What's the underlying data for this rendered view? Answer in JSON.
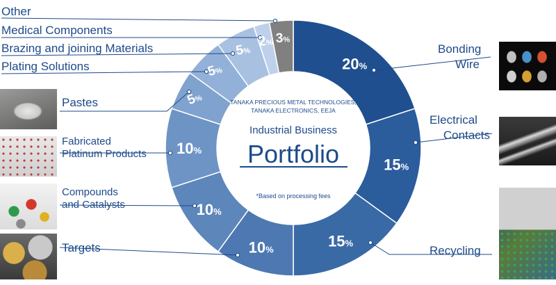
{
  "chart_data": {
    "type": "pie",
    "title": "Portfolio",
    "subtitle": "Industrial Business",
    "company": [
      "TANAKA PRECIOUS METAL TECHNOLOGIES,",
      "TANAKA ELECTRONICS, EEJA"
    ],
    "note": "*Based on processing fees",
    "slices": [
      {
        "label": "Bonding Wire",
        "value": 20,
        "color": "#1f4f8f",
        "thumb": "bonding-wire-photo"
      },
      {
        "label": "Electrical Contacts",
        "value": 15,
        "color": "#2b5c9c",
        "thumb": "electrical-contacts-photo"
      },
      {
        "label": "Recycling",
        "value": 15,
        "color": "#3a6aa6",
        "thumb": "recycling-photo"
      },
      {
        "label": "Targets",
        "value": 10,
        "color": "#4d78b1",
        "thumb": "targets-photo"
      },
      {
        "label": "Compounds and Catalysts",
        "value": 10,
        "color": "#5d86bb",
        "thumb": "compounds-photo"
      },
      {
        "label": "Fabricated Platinum Products",
        "value": 10,
        "color": "#6e94c5",
        "thumb": "platinum-photo"
      },
      {
        "label": "Pastes",
        "value": 5,
        "color": "#80a2ce",
        "thumb": "pastes-photo"
      },
      {
        "label": "Plating Solutions",
        "value": 5,
        "color": "#93b1d8",
        "thumb": ""
      },
      {
        "label": "Brazing and joining Materials",
        "value": 5,
        "color": "#a9c1e1",
        "thumb": ""
      },
      {
        "label": "Medical Components",
        "value": 2,
        "color": "#bfd1ea",
        "thumb": ""
      },
      {
        "label": "Other",
        "value": 3,
        "color": "#808080",
        "thumb": ""
      }
    ]
  }
}
